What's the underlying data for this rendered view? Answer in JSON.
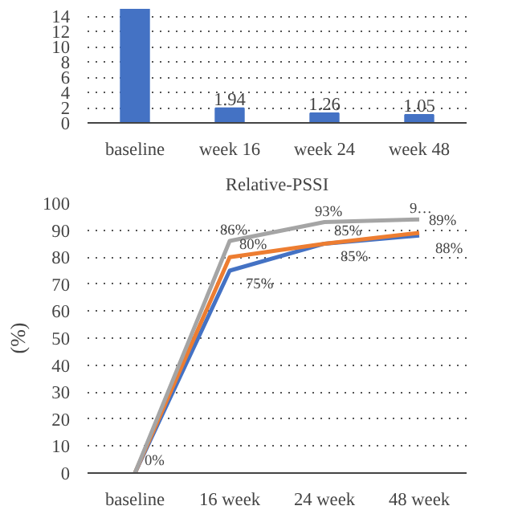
{
  "chart_data": [
    {
      "type": "bar",
      "categories": [
        "baseline",
        "week 16",
        "week 24",
        "week 48"
      ],
      "values": [
        15,
        1.94,
        1.26,
        1.05
      ],
      "color": "#4472c4",
      "value_labels": [
        null,
        "1.94",
        "1.26",
        "1.05"
      ],
      "ylim": [
        0,
        15
      ],
      "yticks": [
        0,
        2,
        4,
        6,
        8,
        10,
        12,
        14
      ],
      "grid": "y"
    },
    {
      "type": "line",
      "title": "Relative-PSSI",
      "ylabel": "(%)",
      "categories": [
        "baseline",
        "16 week",
        "24 week",
        "48 week"
      ],
      "series": [
        {
          "color": "#4472c4",
          "values": [
            0,
            75,
            85,
            88
          ],
          "value_labels": [
            null,
            "75%",
            "85%",
            "88%"
          ]
        },
        {
          "color": "#ed7d31",
          "values": [
            0,
            80,
            85,
            89
          ],
          "value_labels": [
            "0%",
            "80%",
            "85%",
            "89%"
          ]
        },
        {
          "color": "#a5a5a5",
          "values": [
            0,
            86,
            93,
            94
          ],
          "value_labels": [
            null,
            "86%",
            "93%",
            "9…"
          ]
        }
      ],
      "ylim": [
        0,
        100
      ],
      "yticks": [
        0,
        10,
        20,
        30,
        40,
        50,
        60,
        70,
        80,
        90,
        100
      ],
      "grid": "y",
      "line_style": "solid"
    }
  ]
}
